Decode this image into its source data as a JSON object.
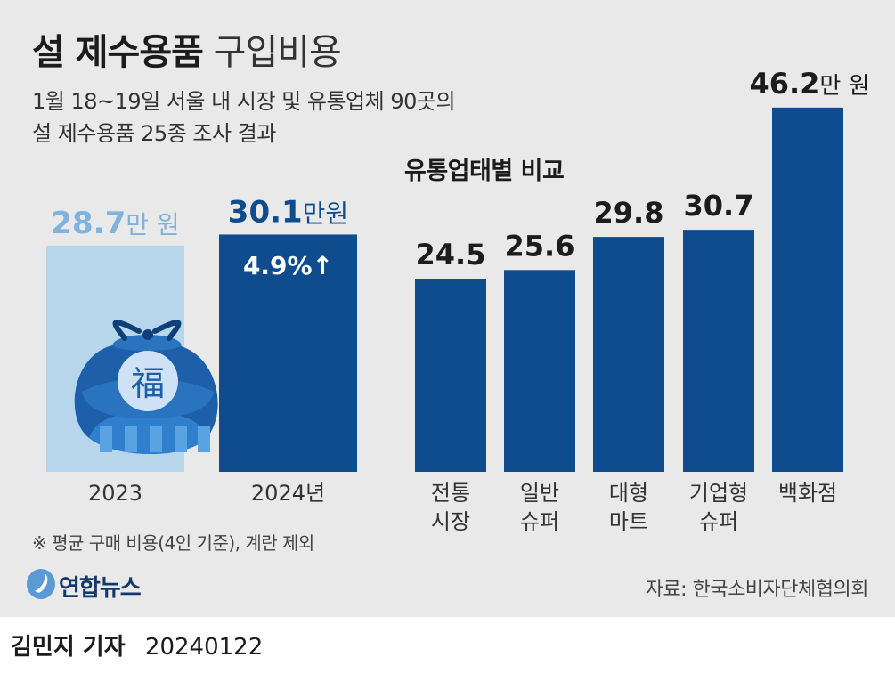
{
  "title": {
    "bold": "설 제수용품",
    "light": "구입비용"
  },
  "subtitle": [
    "1월 18~19일 서울 내 시장 및 유통업체 90곳의",
    "설 제수용품 25종 조사 결과"
  ],
  "section_title": "유통업태별 비교",
  "footnote": "※ 평균 구매 비용(4인 기준), 계란 제외",
  "source": "자료: 한국소비자단체협의회",
  "logo_text": "연합뉴스",
  "byline": {
    "name": "김민지 기자",
    "date": "20240122"
  },
  "colors": {
    "dark_blue": "#0f4c8d",
    "light_blue": "#b7d6ec",
    "light_text": "#7fb2dc",
    "background": "#e9e9ea"
  },
  "icons": {
    "bag": "lucky-bag-icon",
    "up_arrow": "up-arrow-icon"
  },
  "chart_data": [
    {
      "type": "bar",
      "title": "설 제수용품 구입비용",
      "unit": "만원",
      "categories": [
        "2023",
        "2024년"
      ],
      "values": [
        28.7,
        30.1
      ],
      "value_labels": [
        {
          "num": "28.7",
          "unit": "만 원"
        },
        {
          "num": "30.1",
          "unit": "만원"
        }
      ],
      "annotation": "4.9%↑",
      "ylim": [
        0,
        50
      ]
    },
    {
      "type": "bar",
      "title": "유통업태별 비교",
      "unit": "만원",
      "categories": [
        [
          "전통",
          "시장"
        ],
        [
          "일반",
          "슈퍼"
        ],
        [
          "대형",
          "마트"
        ],
        [
          "기업형",
          "슈퍼"
        ],
        [
          "백화점"
        ]
      ],
      "values": [
        24.5,
        25.6,
        29.8,
        30.7,
        46.2
      ],
      "value_labels": [
        "24.5",
        "25.6",
        "29.8",
        "30.7",
        "46.2"
      ],
      "last_label_unit": "만 원",
      "ylim": [
        0,
        50
      ]
    }
  ]
}
